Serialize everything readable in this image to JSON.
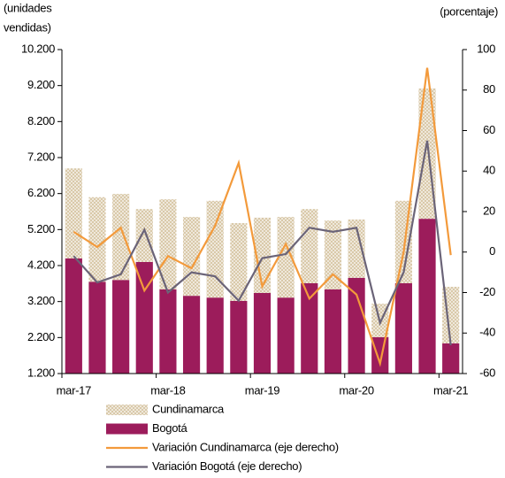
{
  "chart_data": {
    "type": "bar",
    "ylabel": [
      "(unidades",
      "vendidas)"
    ],
    "y2label": "(porcentaje)",
    "categories": [
      "mar-17",
      null,
      null,
      null,
      "mar-18",
      null,
      null,
      null,
      "mar-19",
      null,
      null,
      null,
      "mar-20",
      null,
      null,
      null,
      "mar-21"
    ],
    "series": [
      {
        "name": "Cundinamarca",
        "type": "bar",
        "color": "#d9c9a9",
        "values": [
          2500,
          2350,
          2390,
          1470,
          2500,
          2190,
          2690,
          2160,
          2090,
          2240,
          2060,
          1910,
          1620,
          930,
          2290,
          3620,
          1570
        ]
      },
      {
        "name": "Bogotá",
        "type": "bar",
        "color": "#9c1c5b",
        "values": [
          4400,
          3750,
          3800,
          4300,
          3540,
          3360,
          3310,
          3220,
          3440,
          3310,
          3710,
          3540,
          3860,
          2210,
          3710,
          5500,
          2040
        ]
      },
      {
        "name": "Variación Cundinamarca (eje derecho)",
        "type": "line",
        "axis": "y2",
        "color": "#f39a3b",
        "values": [
          10,
          2.5,
          12,
          -19,
          -2,
          -8,
          13,
          44,
          -17,
          4,
          -23,
          -11,
          -21,
          -55,
          0,
          91,
          -1.5
        ]
      },
      {
        "name": "Variación Bogotá (eje derecho)",
        "type": "line",
        "axis": "y2",
        "color": "#6b6478",
        "values": [
          -2,
          -15,
          -11,
          11,
          -20,
          -10,
          -12,
          -24,
          -3,
          -1,
          12,
          10,
          12,
          -35,
          -10,
          55,
          -46
        ]
      }
    ],
    "stack_order": [
      1,
      0
    ],
    "ylim": [
      1200,
      10200
    ],
    "yticks": [
      {
        "value": 1200,
        "label": "1.200"
      },
      {
        "value": 2200,
        "label": "2.200"
      },
      {
        "value": 3200,
        "label": "3.200"
      },
      {
        "value": 4200,
        "label": "4.200"
      },
      {
        "value": 5200,
        "label": "5.200"
      },
      {
        "value": 6200,
        "label": "6.200"
      },
      {
        "value": 7200,
        "label": "7.200"
      },
      {
        "value": 8200,
        "label": "8.200"
      },
      {
        "value": 9200,
        "label": "9.200"
      },
      {
        "value": 10200,
        "label": "10.200"
      }
    ],
    "y2lim": [
      -60,
      100
    ],
    "y2ticks": [
      -60,
      -40,
      -20,
      0,
      20,
      40,
      60,
      80,
      100
    ],
    "grid": false
  }
}
